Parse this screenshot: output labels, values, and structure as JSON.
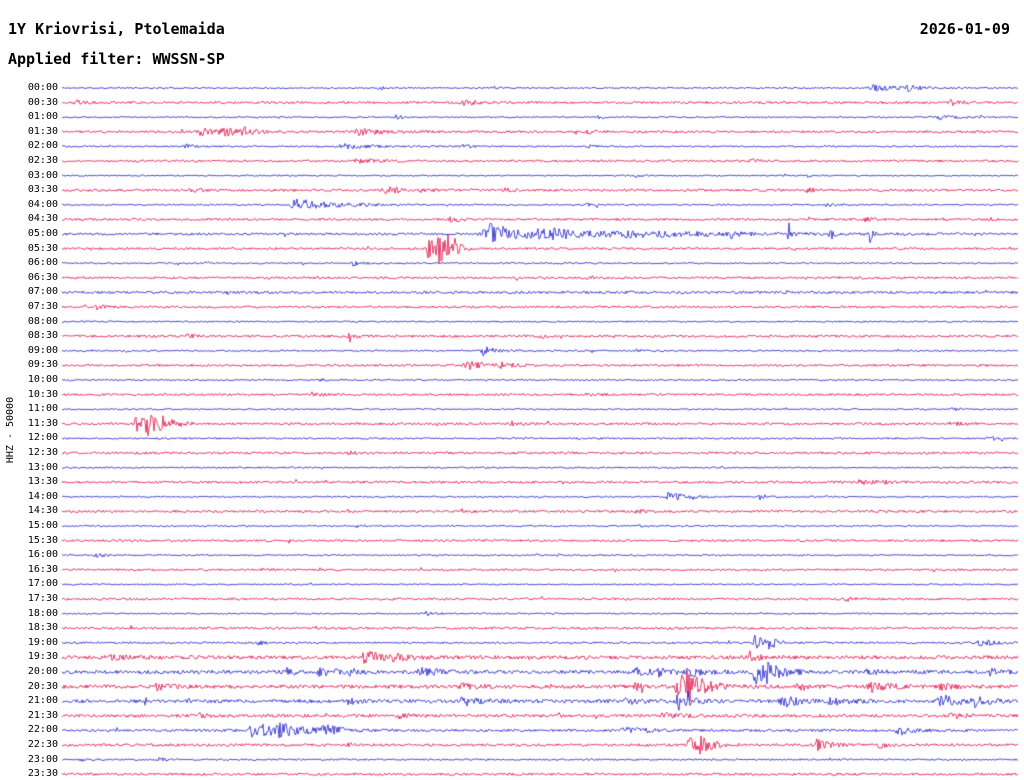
{
  "header": {
    "station_title": "1Y Kriovrisi, Ptolemaida",
    "date": "2026-01-09",
    "filter_label": "Applied filter: WWSSN-SP"
  },
  "axis": {
    "y_label": "HHZ - 50000"
  },
  "colors": {
    "blue": "#2020cc",
    "red": "#e11048",
    "text": "#000000",
    "background": "#ffffff"
  },
  "chart_data": {
    "type": "line",
    "title": "Helicorder day plot, station 1Y Kriovrisi Ptolemaida, channel HHZ, 2026-01-09",
    "x_axis": "30 minutes per trace line",
    "row_interval_minutes": 30,
    "row_format": {
      "t": "line start time",
      "c": "trace color",
      "n": "background noise half-amplitude px",
      "e": "events as [center_fraction_of_line, peak_amplitude_px, width_fraction]"
    },
    "rows": [
      {
        "t": "00:00",
        "c": "blue",
        "n": 0.7,
        "e": [
          [
            0.33,
            2,
            0.004
          ],
          [
            0.45,
            1.5,
            0.003
          ],
          [
            0.85,
            3,
            0.015
          ],
          [
            0.885,
            2.5,
            0.008
          ]
        ]
      },
      {
        "t": "00:30",
        "c": "red",
        "n": 1.2,
        "e": [
          [
            0.012,
            3,
            0.004
          ],
          [
            0.42,
            2,
            0.01
          ],
          [
            0.93,
            2.5,
            0.006
          ]
        ]
      },
      {
        "t": "01:00",
        "c": "blue",
        "n": 0.7,
        "e": [
          [
            0.35,
            2,
            0.005
          ],
          [
            0.56,
            1.5,
            0.004
          ],
          [
            0.915,
            2.5,
            0.012
          ]
        ]
      },
      {
        "t": "01:30",
        "c": "red",
        "n": 1.2,
        "e": [
          [
            0.145,
            4,
            0.008
          ],
          [
            0.168,
            5,
            0.01
          ],
          [
            0.19,
            3,
            0.006
          ],
          [
            0.31,
            3,
            0.012
          ],
          [
            0.55,
            1.5,
            0.004
          ]
        ]
      },
      {
        "t": "02:00",
        "c": "blue",
        "n": 0.8,
        "e": [
          [
            0.13,
            2,
            0.005
          ],
          [
            0.295,
            2.5,
            0.014
          ],
          [
            0.42,
            2,
            0.005
          ],
          [
            0.55,
            1.5,
            0.004
          ]
        ]
      },
      {
        "t": "02:30",
        "c": "red",
        "n": 1.1,
        "e": [
          [
            0.31,
            2.5,
            0.01
          ],
          [
            0.72,
            2,
            0.005
          ]
        ]
      },
      {
        "t": "03:00",
        "c": "blue",
        "n": 0.7,
        "e": [
          [
            0.6,
            1.8,
            0.004
          ],
          [
            0.78,
            1.5,
            0.004
          ]
        ]
      },
      {
        "t": "03:30",
        "c": "red",
        "n": 1.2,
        "e": [
          [
            0.135,
            2.5,
            0.006
          ],
          [
            0.34,
            3,
            0.012
          ],
          [
            0.46,
            2,
            0.006
          ],
          [
            0.78,
            2,
            0.005
          ]
        ]
      },
      {
        "t": "04:00",
        "c": "blue",
        "n": 0.8,
        "e": [
          [
            0.247,
            6,
            0.02
          ],
          [
            0.55,
            1.5,
            0.004
          ],
          [
            0.8,
            2,
            0.004
          ]
        ]
      },
      {
        "t": "04:30",
        "c": "red",
        "n": 1.1,
        "e": [
          [
            0.405,
            3,
            0.006
          ],
          [
            0.84,
            2,
            0.004
          ]
        ]
      },
      {
        "t": "05:00",
        "c": "blue",
        "n": 1.2,
        "e": [
          [
            0.448,
            10,
            0.02
          ],
          [
            0.5,
            4,
            0.04
          ],
          [
            0.6,
            2,
            0.06
          ],
          [
            0.7,
            12,
            0.0015
          ],
          [
            0.76,
            12,
            0.0015
          ],
          [
            0.803,
            10,
            0.0015
          ],
          [
            0.845,
            9,
            0.0015
          ]
        ]
      },
      {
        "t": "05:30",
        "c": "red",
        "n": 1.1,
        "e": [
          [
            0.383,
            16,
            0.003
          ],
          [
            0.393,
            20,
            0.004
          ],
          [
            0.402,
            14,
            0.003
          ],
          [
            0.41,
            8,
            0.003
          ]
        ]
      },
      {
        "t": "06:00",
        "c": "blue",
        "n": 0.8,
        "e": [
          [
            0.118,
            4,
            0.0015
          ],
          [
            0.15,
            3,
            0.0015
          ],
          [
            0.305,
            2.5,
            0.006
          ]
        ]
      },
      {
        "t": "06:30",
        "c": "red",
        "n": 1.1,
        "e": [
          [
            0.55,
            1.5,
            0.004
          ]
        ]
      },
      {
        "t": "07:00",
        "c": "blue",
        "n": 1.3,
        "e": []
      },
      {
        "t": "07:30",
        "c": "red",
        "n": 1.1,
        "e": [
          [
            0.035,
            3,
            0.005
          ]
        ]
      },
      {
        "t": "08:00",
        "c": "blue",
        "n": 0.8,
        "e": []
      },
      {
        "t": "08:30",
        "c": "red",
        "n": 1.2,
        "e": [
          [
            0.13,
            2,
            0.005
          ],
          [
            0.3,
            2,
            0.006
          ],
          [
            0.5,
            1.5,
            0.004
          ]
        ]
      },
      {
        "t": "09:00",
        "c": "blue",
        "n": 0.8,
        "e": [
          [
            0.44,
            4.5,
            0.008
          ],
          [
            0.6,
            1.5,
            0.004
          ]
        ]
      },
      {
        "t": "09:30",
        "c": "red",
        "n": 1.1,
        "e": [
          [
            0.425,
            3.5,
            0.012
          ],
          [
            0.46,
            2.5,
            0.006
          ]
        ]
      },
      {
        "t": "10:00",
        "c": "blue",
        "n": 0.8,
        "e": [
          [
            0.27,
            1.5,
            0.004
          ]
        ]
      },
      {
        "t": "10:30",
        "c": "red",
        "n": 1.1,
        "e": [
          [
            0.26,
            2,
            0.005
          ],
          [
            0.55,
            2,
            0.005
          ]
        ]
      },
      {
        "t": "11:00",
        "c": "blue",
        "n": 0.8,
        "e": [
          [
            0.93,
            1.5,
            0.004
          ]
        ]
      },
      {
        "t": "11:30",
        "c": "red",
        "n": 1.2,
        "e": [
          [
            0.078,
            8,
            0.006
          ],
          [
            0.09,
            9,
            0.008
          ],
          [
            0.105,
            5,
            0.006
          ],
          [
            0.47,
            2,
            0.006
          ],
          [
            0.93,
            2,
            0.005
          ]
        ]
      },
      {
        "t": "12:00",
        "c": "blue",
        "n": 0.9,
        "e": [
          [
            0.97,
            2,
            0.006
          ]
        ]
      },
      {
        "t": "12:30",
        "c": "red",
        "n": 1.2,
        "e": [
          [
            0.3,
            1.5,
            0.004
          ]
        ]
      },
      {
        "t": "13:00",
        "c": "blue",
        "n": 0.8,
        "e": []
      },
      {
        "t": "13:30",
        "c": "red",
        "n": 1.2,
        "e": [
          [
            0.835,
            3,
            0.006
          ],
          [
            0.86,
            2,
            0.004
          ]
        ]
      },
      {
        "t": "14:00",
        "c": "blue",
        "n": 0.8,
        "e": [
          [
            0.635,
            5,
            0.008
          ],
          [
            0.73,
            2.5,
            0.005
          ]
        ]
      },
      {
        "t": "14:30",
        "c": "red",
        "n": 1.2,
        "e": [
          [
            0.6,
            2,
            0.005
          ]
        ]
      },
      {
        "t": "15:00",
        "c": "blue",
        "n": 0.8,
        "e": [
          [
            0.6,
            1.5,
            0.003
          ]
        ]
      },
      {
        "t": "15:30",
        "c": "red",
        "n": 1.1,
        "e": []
      },
      {
        "t": "16:00",
        "c": "blue",
        "n": 0.8,
        "e": [
          [
            0.035,
            2,
            0.005
          ]
        ]
      },
      {
        "t": "16:30",
        "c": "red",
        "n": 1.0,
        "e": [
          [
            0.21,
            1.5,
            0.004
          ]
        ]
      },
      {
        "t": "17:00",
        "c": "blue",
        "n": 0.7,
        "e": []
      },
      {
        "t": "17:30",
        "c": "red",
        "n": 1.1,
        "e": [
          [
            0.82,
            2,
            0.004
          ]
        ]
      },
      {
        "t": "18:00",
        "c": "blue",
        "n": 0.8,
        "e": [
          [
            0.38,
            2,
            0.005
          ]
        ]
      },
      {
        "t": "18:30",
        "c": "red",
        "n": 1.2,
        "e": []
      },
      {
        "t": "19:00",
        "c": "blue",
        "n": 1.0,
        "e": [
          [
            0.205,
            2,
            0.005
          ],
          [
            0.725,
            7,
            0.006
          ],
          [
            0.74,
            5,
            0.004
          ],
          [
            0.96,
            3.5,
            0.008
          ]
        ]
      },
      {
        "t": "19:30",
        "c": "red",
        "n": 1.8,
        "e": [
          [
            0.05,
            2,
            0.01
          ],
          [
            0.315,
            6,
            0.012
          ],
          [
            0.345,
            3,
            0.006
          ],
          [
            0.72,
            5,
            0.004
          ]
        ]
      },
      {
        "t": "20:00",
        "c": "blue",
        "n": 1.8,
        "e": [
          [
            0.235,
            3,
            0.006
          ],
          [
            0.27,
            3.5,
            0.008
          ],
          [
            0.3,
            3,
            0.006
          ],
          [
            0.375,
            4,
            0.01
          ],
          [
            0.6,
            4,
            0.008
          ],
          [
            0.625,
            4,
            0.006
          ],
          [
            0.655,
            5,
            0.008
          ],
          [
            0.725,
            11,
            0.006
          ],
          [
            0.735,
            8,
            0.01
          ],
          [
            0.84,
            3,
            0.006
          ],
          [
            0.97,
            3,
            0.006
          ]
        ]
      },
      {
        "t": "20:30",
        "c": "red",
        "n": 1.8,
        "e": [
          [
            0.1,
            3,
            0.008
          ],
          [
            0.42,
            3,
            0.008
          ],
          [
            0.6,
            3,
            0.006
          ],
          [
            0.645,
            13,
            0.008
          ],
          [
            0.655,
            9,
            0.01
          ],
          [
            0.77,
            4,
            0.006
          ],
          [
            0.845,
            5,
            0.01
          ],
          [
            0.92,
            3,
            0.006
          ]
        ]
      },
      {
        "t": "21:00",
        "c": "blue",
        "n": 1.8,
        "e": [
          [
            0.3,
            3,
            0.006
          ],
          [
            0.42,
            4,
            0.01
          ],
          [
            0.59,
            3,
            0.006
          ],
          [
            0.645,
            9,
            0.006
          ],
          [
            0.755,
            6,
            0.008
          ],
          [
            0.805,
            4,
            0.008
          ],
          [
            0.92,
            6,
            0.01
          ],
          [
            0.955,
            4,
            0.006
          ]
        ]
      },
      {
        "t": "21:30",
        "c": "red",
        "n": 1.5,
        "e": [
          [
            0.14,
            3,
            0.006
          ],
          [
            0.35,
            2.5,
            0.006
          ],
          [
            0.63,
            4,
            0.008
          ],
          [
            0.93,
            3,
            0.006
          ]
        ]
      },
      {
        "t": "22:00",
        "c": "blue",
        "n": 1.3,
        "e": [
          [
            0.2,
            8,
            0.012
          ],
          [
            0.225,
            6,
            0.015
          ],
          [
            0.275,
            5,
            0.008
          ],
          [
            0.59,
            4,
            0.01
          ],
          [
            0.875,
            4.5,
            0.008
          ]
        ]
      },
      {
        "t": "22:30",
        "c": "red",
        "n": 1.3,
        "e": [
          [
            0.3,
            2,
            0.005
          ],
          [
            0.655,
            11,
            0.005
          ],
          [
            0.668,
            7,
            0.008
          ],
          [
            0.79,
            5,
            0.008
          ],
          [
            0.855,
            3,
            0.005
          ]
        ]
      },
      {
        "t": "23:00",
        "c": "blue",
        "n": 0.9,
        "e": [
          [
            0.02,
            2,
            0.004
          ],
          [
            0.1,
            2,
            0.004
          ]
        ]
      },
      {
        "t": "23:30",
        "c": "red",
        "n": 1.2,
        "e": []
      }
    ]
  }
}
